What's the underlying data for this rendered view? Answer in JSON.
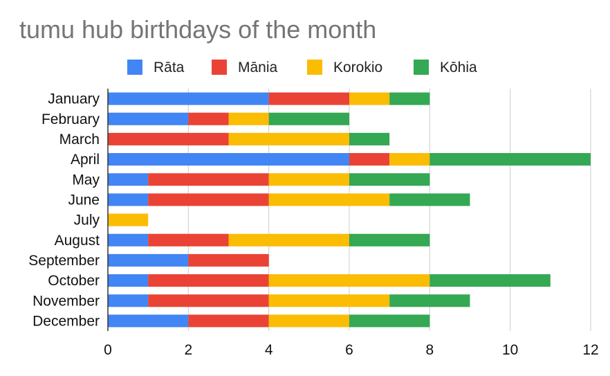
{
  "chart_data": {
    "type": "bar",
    "orientation": "horizontal",
    "stacked": true,
    "title": "tumu hub birthdays of the month",
    "categories": [
      "January",
      "February",
      "March",
      "April",
      "May",
      "June",
      "July",
      "August",
      "September",
      "October",
      "November",
      "December"
    ],
    "series": [
      {
        "name": "Rāta",
        "color": "#4285F4",
        "values": [
          4,
          2,
          0,
          6,
          1,
          1,
          0,
          1,
          2,
          1,
          1,
          2
        ]
      },
      {
        "name": "Mānia",
        "color": "#EA4335",
        "values": [
          2,
          1,
          3,
          1,
          3,
          3,
          0,
          2,
          2,
          3,
          3,
          2
        ]
      },
      {
        "name": "Korokio",
        "color": "#FBBC04",
        "values": [
          1,
          1,
          3,
          1,
          2,
          3,
          1,
          3,
          0,
          4,
          3,
          2
        ]
      },
      {
        "name": "Kōhia",
        "color": "#34A853",
        "values": [
          1,
          2,
          1,
          4,
          2,
          2,
          0,
          2,
          0,
          3,
          2,
          2
        ]
      }
    ],
    "xlim": [
      0,
      12
    ],
    "xticks": [
      "0",
      "2",
      "4",
      "6",
      "8",
      "10",
      "12"
    ],
    "xlabel": "",
    "ylabel": "",
    "grid": true,
    "legend_position": "top"
  }
}
